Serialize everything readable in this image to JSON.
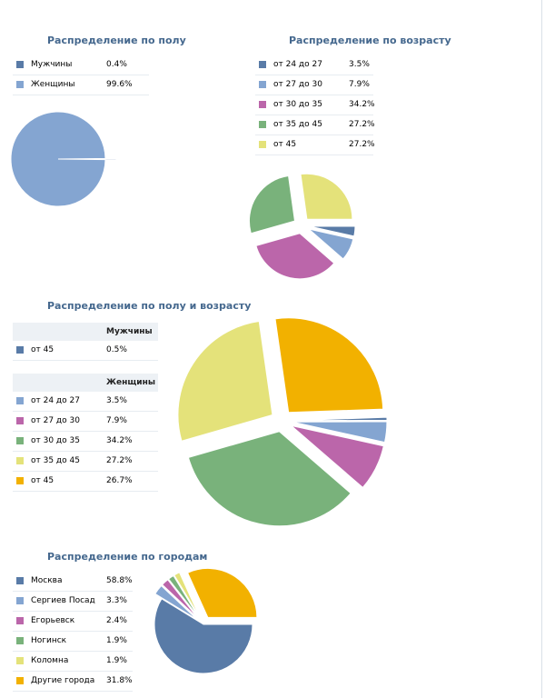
{
  "colors": {
    "title": "#45688e",
    "palette": [
      "#597ba7",
      "#84a5d1",
      "#bb66aa",
      "#79b27b",
      "#e4e27a",
      "#f2b100"
    ]
  },
  "chart_data": [
    {
      "type": "pie",
      "title": "Распределение по полу",
      "series": [
        {
          "name": "Мужчины",
          "value": 0.4,
          "label": "0.4%",
          "color": "#597ba7"
        },
        {
          "name": "Женщины",
          "value": 99.6,
          "label": "99.6%",
          "color": "#84a5d1"
        }
      ]
    },
    {
      "type": "pie",
      "title": "Распределение по возрасту",
      "series": [
        {
          "name": "от 24 до 27",
          "value": 3.5,
          "label": "3.5%",
          "color": "#597ba7"
        },
        {
          "name": "от 27 до 30",
          "value": 7.9,
          "label": "7.9%",
          "color": "#84a5d1"
        },
        {
          "name": "от 30 до 35",
          "value": 34.2,
          "label": "34.2%",
          "color": "#bb66aa"
        },
        {
          "name": "от 35 до 45",
          "value": 27.2,
          "label": "27.2%",
          "color": "#79b27b"
        },
        {
          "name": "от 45",
          "value": 27.2,
          "label": "27.2%",
          "color": "#e4e27a"
        }
      ]
    },
    {
      "type": "pie",
      "title": "Распределение по полу и возрасту",
      "groups": [
        {
          "header": "Мужчины",
          "series": [
            {
              "name": "от 45",
              "value": 0.5,
              "label": "0.5%",
              "color": "#597ba7"
            }
          ]
        },
        {
          "header": "Женщины",
          "series": [
            {
              "name": "от 24 до 27",
              "value": 3.5,
              "label": "3.5%",
              "color": "#84a5d1"
            },
            {
              "name": "от 27 до 30",
              "value": 7.9,
              "label": "7.9%",
              "color": "#bb66aa"
            },
            {
              "name": "от 30 до 35",
              "value": 34.2,
              "label": "34.2%",
              "color": "#79b27b"
            },
            {
              "name": "от 35 до 45",
              "value": 27.2,
              "label": "27.2%",
              "color": "#e4e27a"
            },
            {
              "name": "от 45",
              "value": 26.7,
              "label": "26.7%",
              "color": "#f2b100"
            }
          ]
        }
      ]
    },
    {
      "type": "pie",
      "title": "Распределение по городам",
      "series": [
        {
          "name": "Москва",
          "value": 58.8,
          "label": "58.8%",
          "color": "#597ba7"
        },
        {
          "name": "Сергиев Посад",
          "value": 3.3,
          "label": "3.3%",
          "color": "#84a5d1"
        },
        {
          "name": "Егорьевск",
          "value": 2.4,
          "label": "2.4%",
          "color": "#bb66aa"
        },
        {
          "name": "Ногинск",
          "value": 1.9,
          "label": "1.9%",
          "color": "#79b27b"
        },
        {
          "name": "Коломна",
          "value": 1.9,
          "label": "1.9%",
          "color": "#e4e27a"
        },
        {
          "name": "Другие города",
          "value": 31.8,
          "label": "31.8%",
          "color": "#f2b100"
        }
      ]
    }
  ]
}
